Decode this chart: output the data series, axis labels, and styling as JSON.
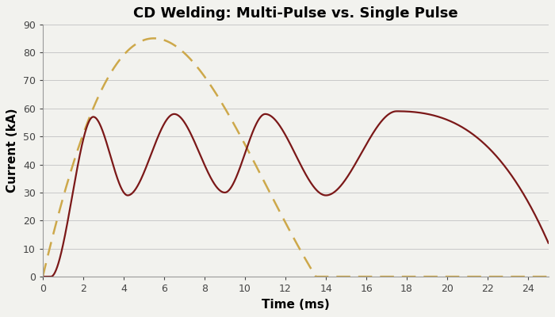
{
  "title": "CD Welding: Multi-Pulse vs. Single Pulse",
  "xlabel": "Time (ms)",
  "ylabel": "Current (kA)",
  "xlim": [
    0,
    25
  ],
  "ylim": [
    0,
    90
  ],
  "xticks": [
    0,
    2,
    4,
    6,
    8,
    10,
    12,
    14,
    16,
    18,
    20,
    22,
    24
  ],
  "yticks": [
    0,
    10,
    20,
    30,
    40,
    50,
    60,
    70,
    80,
    90
  ],
  "single_pulse_color": "#CDA84A",
  "multi_pulse_color": "#7B1818",
  "background_color": "#F2F2EE",
  "title_fontsize": 13,
  "axis_label_fontsize": 11,
  "tick_fontsize": 9
}
